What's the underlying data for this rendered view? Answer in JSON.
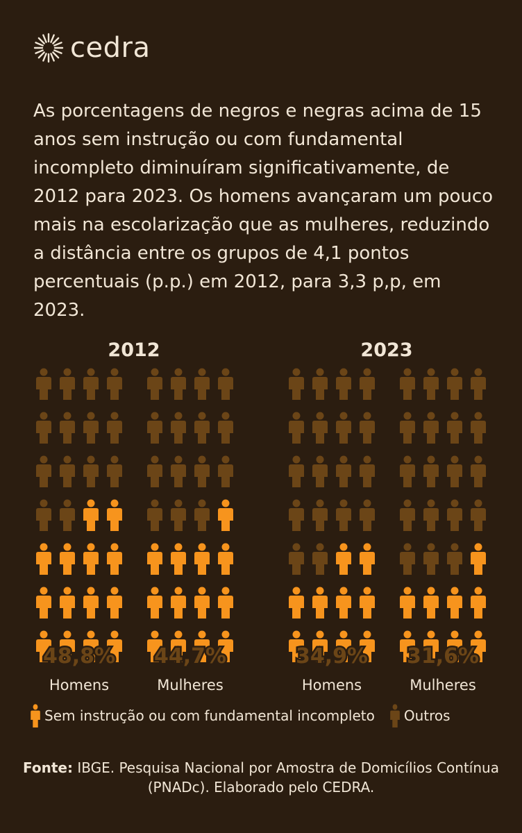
{
  "brand": {
    "name": "cedra",
    "icon": "sun-burst-icon"
  },
  "intro": "As porcentagens de negros e negras acima de 15 anos sem instrução ou com fundamental incompleto diminuíram significativamente, de 2012 para 2023. Os homens avançaram um pouco mais na escolarização que as mulheres, reduzindo a distância entre os grupos de 4,1 pontos percentuais (p.p.) em 2012, para 3,3 p,p, em 2023.",
  "colors": {
    "highlight": "#f7941d",
    "other": "#6b4517",
    "background": "#2b1d10",
    "text": "#f1e6d6"
  },
  "chart_data": {
    "type": "pictogram",
    "icons_per_group": 28,
    "years": [
      {
        "year": "2012",
        "groups": [
          {
            "label": "Homens",
            "value_label": "48,8%",
            "value": 48.8,
            "highlighted_icons": 14
          },
          {
            "label": "Mulheres",
            "value_label": "44,7%",
            "value": 44.7,
            "highlighted_icons": 13
          }
        ]
      },
      {
        "year": "2023",
        "groups": [
          {
            "label": "Homens",
            "value_label": "34,9%",
            "value": 34.9,
            "highlighted_icons": 10
          },
          {
            "label": "Mulheres",
            "value_label": "31,6%",
            "value": 31.6,
            "highlighted_icons": 9
          }
        ]
      }
    ],
    "legend": [
      {
        "label": "Sem instrução ou com fundamental incompleto",
        "color": "#f7941d"
      },
      {
        "label": "Outros",
        "color": "#6b4517"
      }
    ]
  },
  "source": {
    "label": "Fonte:",
    "text": "IBGE. Pesquisa Nacional por Amostra de Domicílios Contínua (PNADc). Elaborado pelo CEDRA."
  }
}
